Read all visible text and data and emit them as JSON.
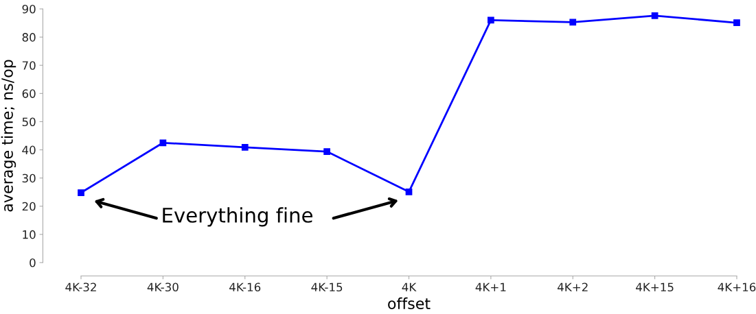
{
  "chart_data": {
    "type": "line",
    "xlabel": "offset",
    "ylabel": "average time; ns/op",
    "categories": [
      "4K-32",
      "4K-30",
      "4K-16",
      "4K-15",
      "4K",
      "4K+1",
      "4K+2",
      "4K+15",
      "4K+16"
    ],
    "series": [
      {
        "color": "#0000ff",
        "values": [
          24.8,
          42.5,
          40.9,
          39.4,
          25.1,
          86.0,
          85.3,
          87.6,
          85.1
        ]
      }
    ],
    "ylim": [
      0,
      90
    ],
    "yticks": [
      0,
      10,
      20,
      30,
      40,
      50,
      60,
      70,
      80,
      90
    ],
    "marker": "square",
    "line_style": "solid",
    "grid": false,
    "legend": false,
    "annotations": [
      "Everything fine"
    ]
  }
}
